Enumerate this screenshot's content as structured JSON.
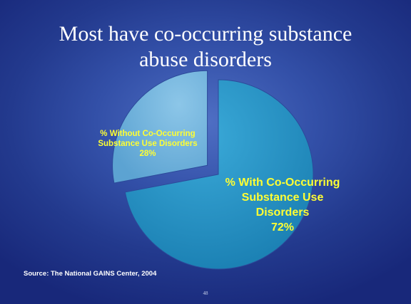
{
  "slide": {
    "title_line1": "Most have co-occurring substance",
    "title_line2": "abuse disorders",
    "source": "Source: The National GAINS Center, 2004",
    "page_number": "48"
  },
  "labels": {
    "with_line1": "% With Co-Occurring",
    "with_line2": "Substance Use",
    "with_line3": "Disorders",
    "with_value": "72%",
    "without_line1": "% Without Co-Occurring",
    "without_line2": "Substance Use Disorders",
    "without_value": "28%"
  },
  "colors": {
    "with_slice": "#1f8fc2",
    "without_slice": "#6fb3dc",
    "label_text": "#ffff33"
  },
  "chart_data": {
    "type": "pie",
    "title": "Most have co-occurring substance abuse disorders",
    "categories": [
      "% With Co-Occurring Substance Use Disorders",
      "% Without Co-Occurring Substance Use Disorders"
    ],
    "values": [
      72,
      28
    ],
    "exploded": [
      "% Without Co-Occurring Substance Use Disorders"
    ],
    "legend": "none"
  }
}
